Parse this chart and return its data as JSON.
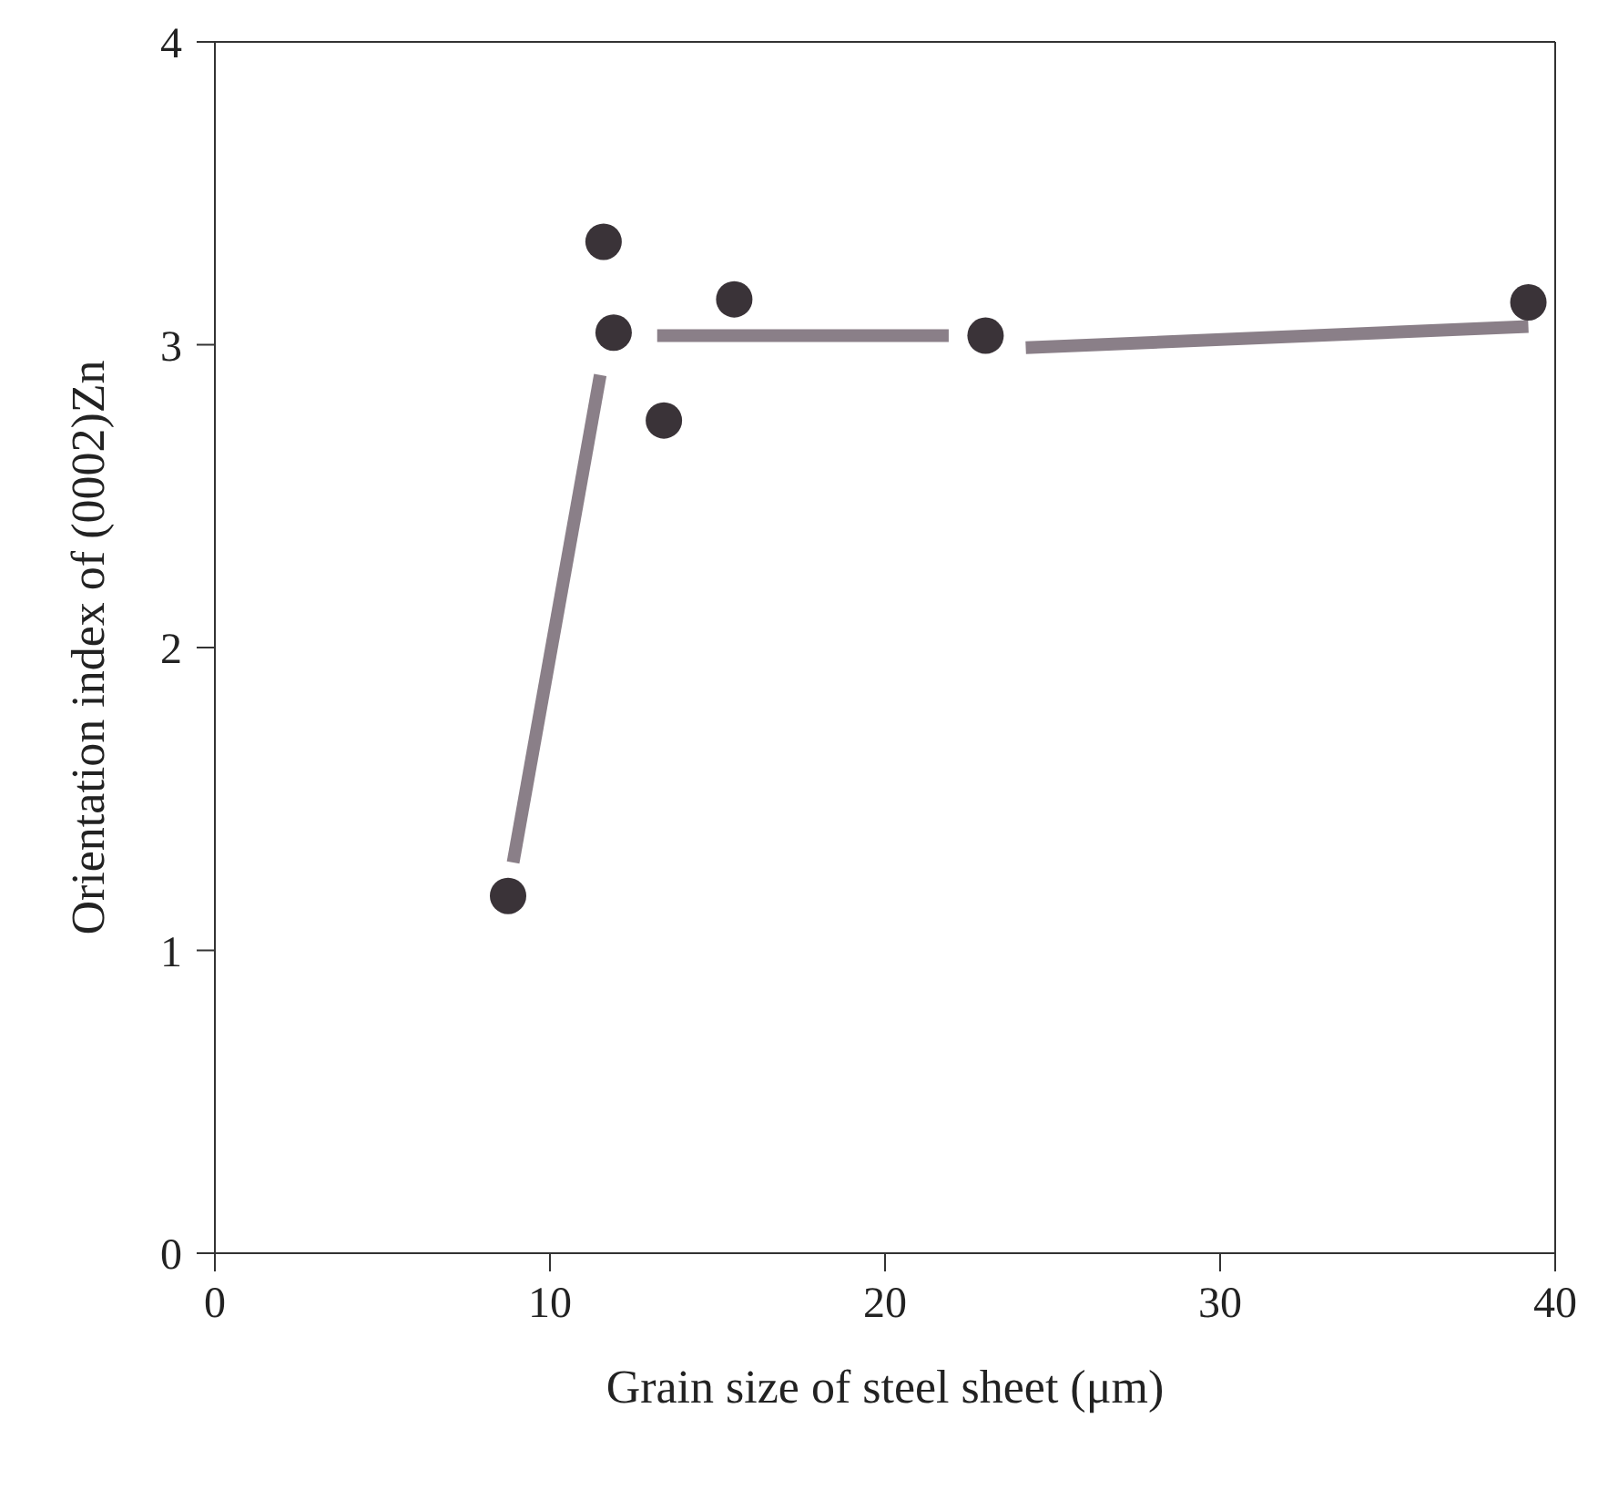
{
  "chart_data": {
    "type": "scatter",
    "xlabel": "Grain size of steel sheet (μm)",
    "ylabel": "Orientation index of (0002)Zn",
    "xlim": [
      0,
      40
    ],
    "xticks": [
      0,
      10,
      20,
      30,
      40
    ],
    "ylim": [
      0,
      4
    ],
    "yticks": [
      0,
      1,
      2,
      3,
      4
    ],
    "marker": "circle",
    "series": [
      {
        "color": "#3a3338",
        "x": [
          8.75,
          11.6,
          11.9,
          13.4,
          15.5,
          23.0,
          39.2
        ],
        "values": [
          1.18,
          3.34,
          3.04,
          2.75,
          3.15,
          3.03,
          3.14
        ]
      },
      {
        "type": "line",
        "color": "#8a7f88",
        "line_style": "solid",
        "marker": "none",
        "x": [
          8.9,
          11.5
        ],
        "values": [
          1.29,
          2.9
        ]
      },
      {
        "type": "line",
        "color": "#8a7f88",
        "line_style": "solid",
        "marker": "none",
        "x": [
          13.2,
          21.9
        ],
        "values": [
          3.03,
          3.03
        ]
      },
      {
        "type": "line",
        "color": "#8a7f88",
        "line_style": "solid",
        "marker": "none",
        "x": [
          24.2,
          39.2
        ],
        "values": [
          2.99,
          3.06
        ]
      }
    ]
  }
}
